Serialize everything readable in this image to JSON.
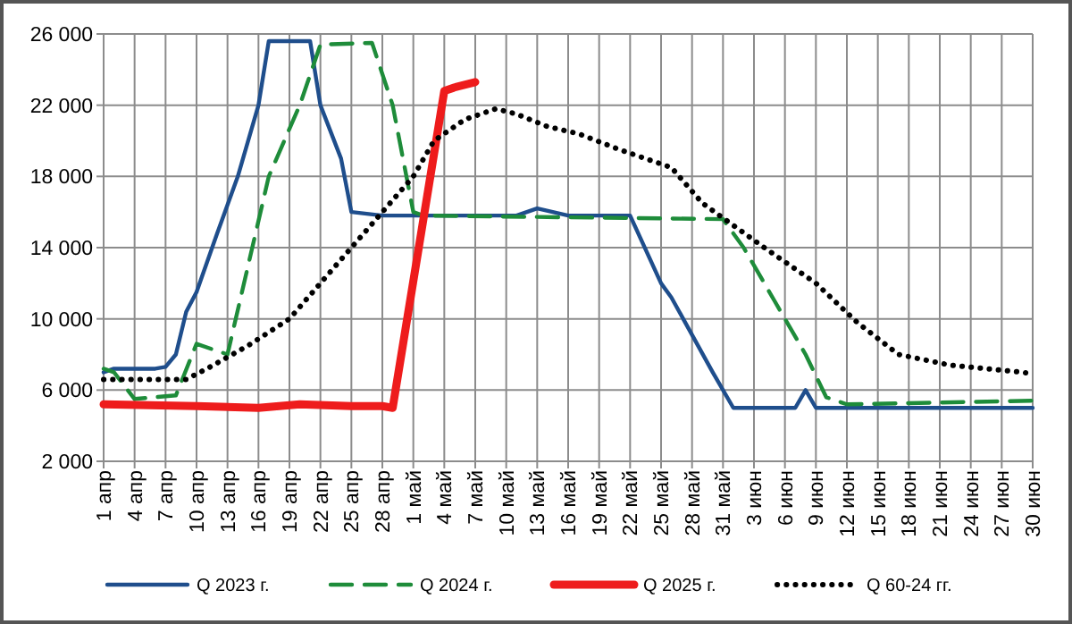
{
  "chart_data": {
    "type": "line",
    "xlim": [
      "--04-01",
      "--06-30"
    ],
    "xticks": [
      {
        "value": "--04-01",
        "label": "1 апр"
      },
      {
        "value": "--04-04",
        "label": "4 апр"
      },
      {
        "value": "--04-07",
        "label": "7 апр"
      },
      {
        "value": "--04-10",
        "label": "10 апр"
      },
      {
        "value": "--04-13",
        "label": "13 апр"
      },
      {
        "value": "--04-16",
        "label": "16 апр"
      },
      {
        "value": "--04-19",
        "label": "19 апр"
      },
      {
        "value": "--04-22",
        "label": "22 апр"
      },
      {
        "value": "--04-25",
        "label": "25 апр"
      },
      {
        "value": "--04-28",
        "label": "28 апр"
      },
      {
        "value": "--05-01",
        "label": "1 май"
      },
      {
        "value": "--05-04",
        "label": "4 май"
      },
      {
        "value": "--05-07",
        "label": "7 май"
      },
      {
        "value": "--05-10",
        "label": "10 май"
      },
      {
        "value": "--05-13",
        "label": "13 май"
      },
      {
        "value": "--05-16",
        "label": "16 май"
      },
      {
        "value": "--05-19",
        "label": "19 май"
      },
      {
        "value": "--05-22",
        "label": "22 май"
      },
      {
        "value": "--05-25",
        "label": "25 май"
      },
      {
        "value": "--05-28",
        "label": "28 май"
      },
      {
        "value": "--05-31",
        "label": "31 май"
      },
      {
        "value": "--06-03",
        "label": "3 июн"
      },
      {
        "value": "--06-06",
        "label": "6 июн"
      },
      {
        "value": "--06-09",
        "label": "9 июн"
      },
      {
        "value": "--06-12",
        "label": "12 июн"
      },
      {
        "value": "--06-15",
        "label": "15 июн"
      },
      {
        "value": "--06-18",
        "label": "18 июн"
      },
      {
        "value": "--06-21",
        "label": "21 июн"
      },
      {
        "value": "--06-24",
        "label": "24 июн"
      },
      {
        "value": "--06-27",
        "label": "27 июн"
      },
      {
        "value": "--06-30",
        "label": "30 июн"
      }
    ],
    "ylim": [
      2000,
      26000
    ],
    "yticks": [
      {
        "value": 2000,
        "label": "2 000"
      },
      {
        "value": 6000,
        "label": "6 000"
      },
      {
        "value": 10000,
        "label": "10 000"
      },
      {
        "value": 14000,
        "label": "14 000"
      },
      {
        "value": 18000,
        "label": "18 000"
      },
      {
        "value": 22000,
        "label": "22 000"
      },
      {
        "value": 26000,
        "label": "26 000"
      }
    ],
    "grid": true,
    "legend": "bottom",
    "series": [
      {
        "name": "Q 2023 г.",
        "color": "#1f4e8c",
        "line_style": "solid",
        "x": [
          "--04-01",
          "--04-02",
          "--04-06",
          "--04-07",
          "--04-08",
          "--04-09",
          "--04-10",
          "--04-12",
          "--04-14",
          "--04-16",
          "--04-17",
          "--04-21",
          "--04-22",
          "--04-24",
          "--04-25",
          "--04-28",
          "--05-11",
          "--05-13",
          "--05-16",
          "--05-22",
          "--05-25",
          "--05-26",
          "--05-30",
          "--06-01",
          "--06-07",
          "--06-08",
          "--06-09",
          "--06-30"
        ],
        "values": [
          7000,
          7200,
          7200,
          7300,
          8000,
          10400,
          11500,
          14800,
          18000,
          22000,
          25600,
          25600,
          22000,
          19000,
          16000,
          15800,
          15800,
          16200,
          15800,
          15800,
          12000,
          11200,
          7000,
          5000,
          5000,
          6000,
          5000,
          5000
        ]
      },
      {
        "name": "Q 2024 г.",
        "color": "#1e8c3a",
        "line_style": "dashed",
        "x": [
          "--04-01",
          "--04-02",
          "--04-04",
          "--04-06",
          "--04-08",
          "--04-10",
          "--04-13",
          "--04-17",
          "--04-20",
          "--04-22",
          "--04-27",
          "--04-29",
          "--05-01",
          "--05-02",
          "--05-31",
          "--06-02",
          "--06-05",
          "--06-08",
          "--06-10",
          "--06-12",
          "--06-30"
        ],
        "values": [
          7200,
          7000,
          5500,
          5600,
          5700,
          8600,
          8000,
          18000,
          22000,
          25400,
          25500,
          22000,
          16000,
          15800,
          15600,
          14000,
          11000,
          8000,
          5600,
          5200,
          5400
        ]
      },
      {
        "name": "Q 2025 г.",
        "color": "#ee1c1c",
        "line_style": "solid",
        "x": [
          "--04-01",
          "--04-10",
          "--04-16",
          "--04-20",
          "--04-25",
          "--04-28",
          "--04-29",
          "--05-04",
          "--05-05",
          "--05-07"
        ],
        "values": [
          5200,
          5100,
          5000,
          5200,
          5100,
          5100,
          5000,
          22800,
          23000,
          23300
        ]
      },
      {
        "name": "Q 60-24 гг.",
        "color": "#000000",
        "line_style": "dotted",
        "x": [
          "--04-01",
          "--04-09",
          "--04-11",
          "--04-15",
          "--04-19",
          "--04-22",
          "--04-25",
          "--04-28",
          "--05-01",
          "--05-03",
          "--05-06",
          "--05-09",
          "--05-11",
          "--05-14",
          "--05-17",
          "--05-21",
          "--05-26",
          "--05-29",
          "--06-04",
          "--06-09",
          "--06-13",
          "--06-17",
          "--06-22",
          "--06-29",
          "--06-30"
        ],
        "values": [
          6600,
          6600,
          7200,
          8500,
          10000,
          12000,
          14000,
          16000,
          18000,
          20000,
          21200,
          21800,
          21500,
          20800,
          20400,
          19500,
          18500,
          16500,
          14000,
          12000,
          9800,
          8000,
          7400,
          7000,
          6900
        ]
      }
    ]
  }
}
